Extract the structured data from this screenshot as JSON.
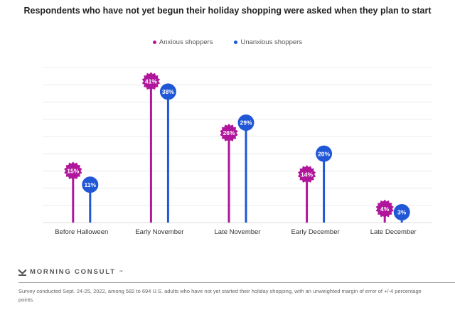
{
  "chart_data": {
    "type": "lollipop",
    "title": "Respondents who have not yet begun their holiday shopping were asked when they plan to start",
    "categories": [
      "Before Halloween",
      "Early November",
      "Late November",
      "Early December",
      "Late December"
    ],
    "series": [
      {
        "name": "Anxious shoppers",
        "color": "#b0169b",
        "marker": "starburst",
        "values": [
          15,
          41,
          26,
          14,
          4
        ]
      },
      {
        "name": "Unanxious shoppers",
        "color": "#2057d6",
        "marker": "circle",
        "values": [
          11,
          38,
          29,
          20,
          3
        ]
      }
    ],
    "value_suffix": "%",
    "ylim": [
      0,
      45
    ],
    "ytick_step": 5,
    "grid": true,
    "show_y_tick_labels": false,
    "legend_position": "top-center",
    "xlabel": "",
    "ylabel": ""
  },
  "brand": {
    "name": "MORNING CONSULT",
    "mark": "™"
  },
  "footnote": "Survey conducted Sept. 24-25, 2022, among 582 to 694 U.S. adults who have not yet started their holiday shopping, with an unweighted margin of error of +/-4 percentage points."
}
